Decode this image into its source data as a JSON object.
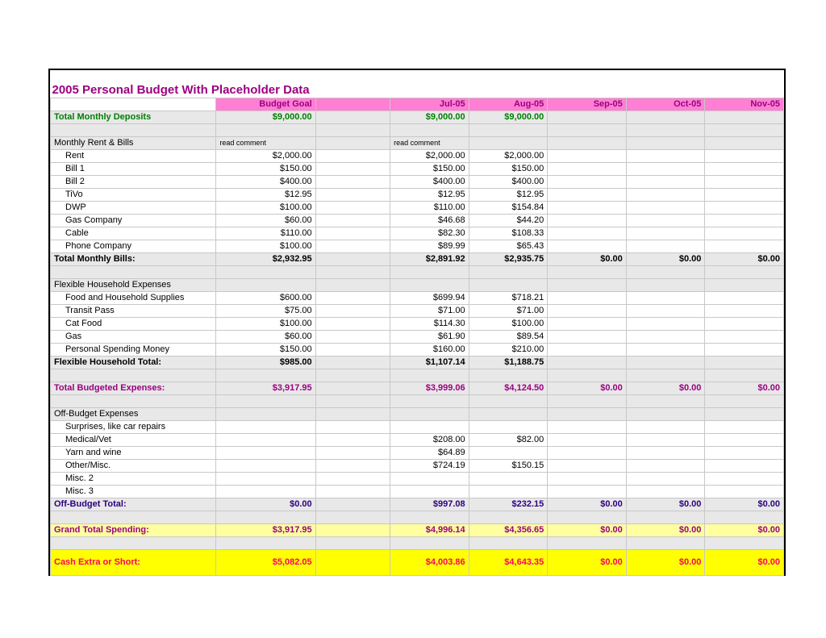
{
  "title": "2005 Personal Budget With Placeholder Data",
  "header": {
    "budgetGoal": "Budget Goal",
    "months": [
      "Jul-05",
      "Aug-05",
      "Sep-05",
      "Oct-05",
      "Nov-05"
    ]
  },
  "deposits": {
    "label": "Total Monthly Deposits",
    "goal": "$9,000.00",
    "m": [
      "$9,000.00",
      "$9,000.00",
      "",
      "",
      ""
    ]
  },
  "bills": {
    "section": "Monthly Rent & Bills",
    "comment": "read comment",
    "rows": [
      {
        "l": "Rent",
        "g": "$2,000.00",
        "m": [
          "$2,000.00",
          "$2,000.00",
          "",
          "",
          ""
        ]
      },
      {
        "l": "Bill 1",
        "g": "$150.00",
        "m": [
          "$150.00",
          "$150.00",
          "",
          "",
          ""
        ]
      },
      {
        "l": "Bill 2",
        "g": "$400.00",
        "m": [
          "$400.00",
          "$400.00",
          "",
          "",
          ""
        ]
      },
      {
        "l": "TiVo",
        "g": "$12.95",
        "m": [
          "$12.95",
          "$12.95",
          "",
          "",
          ""
        ]
      },
      {
        "l": "DWP",
        "g": "$100.00",
        "m": [
          "$110.00",
          "$154.84",
          "",
          "",
          ""
        ]
      },
      {
        "l": "Gas Company",
        "g": "$60.00",
        "m": [
          "$46.68",
          "$44.20",
          "",
          "",
          ""
        ]
      },
      {
        "l": "Cable",
        "g": "$110.00",
        "m": [
          "$82.30",
          "$108.33",
          "",
          "",
          ""
        ]
      },
      {
        "l": "Phone Company",
        "g": "$100.00",
        "m": [
          "$89.99",
          "$65.43",
          "",
          "",
          ""
        ]
      }
    ],
    "total": {
      "l": "Total Monthly Bills:",
      "g": "$2,932.95",
      "m": [
        "$2,891.92",
        "$2,935.75",
        "$0.00",
        "$0.00",
        "$0.00"
      ]
    }
  },
  "flex": {
    "section": "Flexible Household Expenses",
    "rows": [
      {
        "l": "Food and Household Supplies",
        "g": "$600.00",
        "m": [
          "$699.94",
          "$718.21",
          "",
          "",
          ""
        ]
      },
      {
        "l": "Transit Pass",
        "g": "$75.00",
        "m": [
          "$71.00",
          "$71.00",
          "",
          "",
          ""
        ]
      },
      {
        "l": "Cat Food",
        "g": "$100.00",
        "m": [
          "$114.30",
          "$100.00",
          "",
          "",
          ""
        ]
      },
      {
        "l": "Gas",
        "g": "$60.00",
        "m": [
          "$61.90",
          "$89.54",
          "",
          "",
          ""
        ]
      },
      {
        "l": "Personal Spending Money",
        "g": "$150.00",
        "m": [
          "$160.00",
          "$210.00",
          "",
          "",
          ""
        ]
      }
    ],
    "total": {
      "l": "Flexible Household Total:",
      "g": "$985.00",
      "m": [
        "$1,107.14",
        "$1,188.75",
        "",
        "",
        ""
      ]
    }
  },
  "tbe": {
    "l": "Total Budgeted Expenses:",
    "g": "$3,917.95",
    "m": [
      "$3,999.06",
      "$4,124.50",
      "$0.00",
      "$0.00",
      "$0.00"
    ]
  },
  "off": {
    "section": "Off-Budget Expenses",
    "rows": [
      {
        "l": "Surprises, like car repairs",
        "g": "",
        "m": [
          "",
          "",
          "",
          "",
          ""
        ]
      },
      {
        "l": "Medical/Vet",
        "g": "",
        "m": [
          "$208.00",
          "$82.00",
          "",
          "",
          ""
        ]
      },
      {
        "l": "Yarn and wine",
        "g": "",
        "m": [
          "$64.89",
          "",
          "",
          "",
          ""
        ]
      },
      {
        "l": "Other/Misc.",
        "g": "",
        "m": [
          "$724.19",
          "$150.15",
          "",
          "",
          ""
        ]
      },
      {
        "l": "Misc. 2",
        "g": "",
        "m": [
          "",
          "",
          "",
          "",
          ""
        ]
      },
      {
        "l": "Misc. 3",
        "g": "",
        "m": [
          "",
          "",
          "",
          "",
          ""
        ]
      }
    ],
    "total": {
      "l": "Off-Budget Total:",
      "g": "$0.00",
      "m": [
        "$997.08",
        "$232.15",
        "$0.00",
        "$0.00",
        "$0.00"
      ]
    }
  },
  "gts": {
    "l": "Grand Total Spending:",
    "g": "$3,917.95",
    "m": [
      "$4,996.14",
      "$4,356.65",
      "$0.00",
      "$0.00",
      "$0.00"
    ]
  },
  "cash": {
    "l": "Cash Extra or Short:",
    "g": "$5,082.05",
    "m": [
      "$4,003.86",
      "$4,643.35",
      "$0.00",
      "$0.00",
      "$0.00"
    ]
  }
}
